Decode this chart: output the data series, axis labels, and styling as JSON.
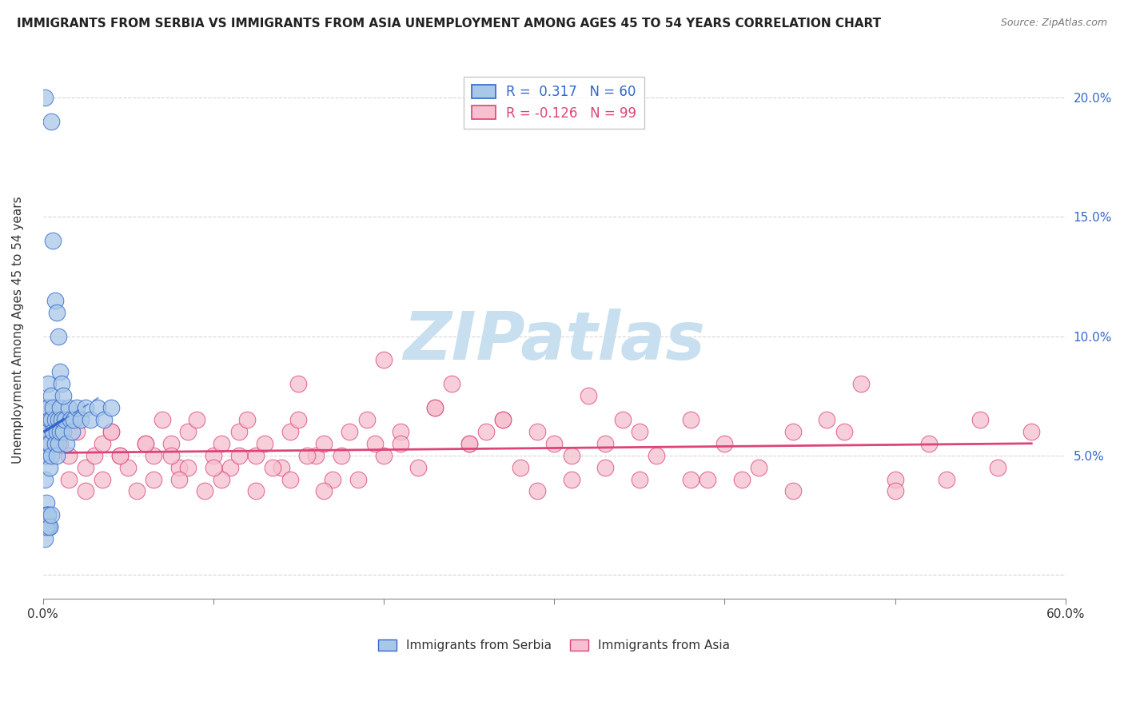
{
  "title": "IMMIGRANTS FROM SERBIA VS IMMIGRANTS FROM ASIA UNEMPLOYMENT AMONG AGES 45 TO 54 YEARS CORRELATION CHART",
  "source": "Source: ZipAtlas.com",
  "ylabel": "Unemployment Among Ages 45 to 54 years",
  "xlabel_serbia": "Immigrants from Serbia",
  "xlabel_asia": "Immigrants from Asia",
  "xlim": [
    0.0,
    0.6
  ],
  "ylim": [
    -0.01,
    0.215
  ],
  "yticks": [
    0.0,
    0.05,
    0.1,
    0.15,
    0.2
  ],
  "yticklabels_right": [
    "",
    "5.0%",
    "10.0%",
    "15.0%",
    "20.0%"
  ],
  "serbia_R": 0.317,
  "serbia_N": 60,
  "asia_R": -0.126,
  "asia_N": 99,
  "serbia_color": "#a8c8e8",
  "serbia_line_color": "#3366cc",
  "serbia_edge_color": "#3366cc",
  "asia_color": "#f5c0d0",
  "asia_line_color": "#dd4477",
  "asia_edge_color": "#dd4477",
  "watermark_text": "ZIPatlas",
  "watermark_color": "#c8dff0",
  "grid_color": "#cccccc",
  "serbia_points_x": [
    0.001,
    0.001,
    0.001,
    0.002,
    0.002,
    0.002,
    0.003,
    0.003,
    0.003,
    0.004,
    0.004,
    0.004,
    0.005,
    0.005,
    0.005,
    0.006,
    0.006,
    0.007,
    0.007,
    0.008,
    0.008,
    0.009,
    0.009,
    0.01,
    0.01,
    0.011,
    0.012,
    0.013,
    0.014,
    0.015,
    0.016,
    0.017,
    0.018,
    0.02,
    0.022,
    0.025,
    0.028,
    0.032,
    0.036,
    0.04,
    0.005,
    0.006,
    0.007,
    0.008,
    0.009,
    0.01,
    0.011,
    0.012,
    0.002,
    0.003,
    0.004,
    0.003,
    0.002,
    0.001,
    0.001,
    0.002,
    0.003,
    0.004,
    0.005,
    0.001
  ],
  "serbia_points_y": [
    0.06,
    0.05,
    0.04,
    0.07,
    0.06,
    0.05,
    0.08,
    0.07,
    0.055,
    0.065,
    0.055,
    0.045,
    0.075,
    0.065,
    0.05,
    0.07,
    0.06,
    0.065,
    0.055,
    0.06,
    0.05,
    0.065,
    0.055,
    0.07,
    0.06,
    0.065,
    0.06,
    0.065,
    0.055,
    0.07,
    0.065,
    0.06,
    0.065,
    0.07,
    0.065,
    0.07,
    0.065,
    0.07,
    0.065,
    0.07,
    0.19,
    0.14,
    0.115,
    0.11,
    0.1,
    0.085,
    0.08,
    0.075,
    0.03,
    0.025,
    0.02,
    0.02,
    0.025,
    0.02,
    0.015,
    0.02,
    0.025,
    0.02,
    0.025,
    0.2
  ],
  "asia_points_x": [
    0.01,
    0.015,
    0.02,
    0.025,
    0.03,
    0.035,
    0.04,
    0.045,
    0.05,
    0.06,
    0.065,
    0.07,
    0.075,
    0.08,
    0.085,
    0.09,
    0.1,
    0.105,
    0.11,
    0.115,
    0.12,
    0.125,
    0.13,
    0.14,
    0.145,
    0.15,
    0.16,
    0.165,
    0.17,
    0.18,
    0.19,
    0.2,
    0.21,
    0.22,
    0.23,
    0.24,
    0.25,
    0.26,
    0.27,
    0.28,
    0.29,
    0.3,
    0.31,
    0.32,
    0.33,
    0.34,
    0.35,
    0.36,
    0.38,
    0.39,
    0.4,
    0.42,
    0.44,
    0.46,
    0.48,
    0.5,
    0.52,
    0.55,
    0.58,
    0.015,
    0.025,
    0.035,
    0.045,
    0.055,
    0.065,
    0.075,
    0.085,
    0.095,
    0.105,
    0.115,
    0.125,
    0.135,
    0.145,
    0.155,
    0.165,
    0.175,
    0.185,
    0.195,
    0.21,
    0.23,
    0.25,
    0.27,
    0.29,
    0.31,
    0.33,
    0.35,
    0.38,
    0.41,
    0.44,
    0.47,
    0.5,
    0.53,
    0.56,
    0.2,
    0.15,
    0.1,
    0.08,
    0.06,
    0.04
  ],
  "asia_points_y": [
    0.055,
    0.05,
    0.06,
    0.045,
    0.05,
    0.055,
    0.06,
    0.05,
    0.045,
    0.055,
    0.05,
    0.065,
    0.055,
    0.045,
    0.06,
    0.065,
    0.05,
    0.055,
    0.045,
    0.06,
    0.065,
    0.05,
    0.055,
    0.045,
    0.06,
    0.065,
    0.05,
    0.055,
    0.04,
    0.06,
    0.065,
    0.05,
    0.06,
    0.045,
    0.07,
    0.08,
    0.055,
    0.06,
    0.065,
    0.045,
    0.06,
    0.055,
    0.05,
    0.075,
    0.055,
    0.065,
    0.06,
    0.05,
    0.065,
    0.04,
    0.055,
    0.045,
    0.06,
    0.065,
    0.08,
    0.04,
    0.055,
    0.065,
    0.06,
    0.04,
    0.035,
    0.04,
    0.05,
    0.035,
    0.04,
    0.05,
    0.045,
    0.035,
    0.04,
    0.05,
    0.035,
    0.045,
    0.04,
    0.05,
    0.035,
    0.05,
    0.04,
    0.055,
    0.055,
    0.07,
    0.055,
    0.065,
    0.035,
    0.04,
    0.045,
    0.04,
    0.04,
    0.04,
    0.035,
    0.06,
    0.035,
    0.04,
    0.045,
    0.09,
    0.08,
    0.045,
    0.04,
    0.055,
    0.06
  ],
  "serbia_line_start_x": 0.001,
  "serbia_line_end_solid": 0.012,
  "serbia_line_end_dashed": 0.035,
  "asia_line_start_x": 0.01,
  "asia_line_end_x": 0.58
}
